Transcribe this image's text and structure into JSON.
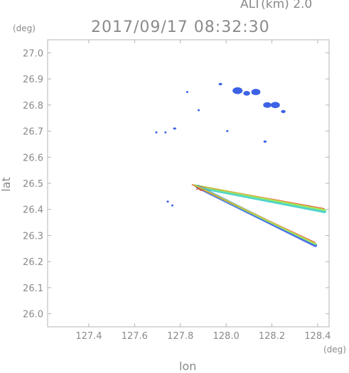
{
  "header": {
    "alt_label": "ALT(km)  2.0",
    "timestamp": "2017/09/17 08:32:30"
  },
  "chart_data": {
    "type": "scatter",
    "title": "2017/09/17 08:32:30",
    "subtitle": "ALT(km)  2.0",
    "xlabel": "lon",
    "ylabel": "lat",
    "x_unit": "(deg)",
    "y_unit": "(deg)",
    "xlim": [
      127.22,
      128.45
    ],
    "ylim": [
      25.95,
      27.05
    ],
    "xticks": [
      "127.4",
      "127.6",
      "127.8",
      "128.0",
      "128.2",
      "128.4"
    ],
    "yticks": [
      "26.0",
      "26.1",
      "26.2",
      "26.3",
      "26.4",
      "26.5",
      "26.6",
      "26.7",
      "26.8",
      "26.9",
      "27.0"
    ],
    "grid": false,
    "colors": {
      "echo_blue": "#3d62e6",
      "echo_cyan": "#3fd0c8",
      "echo_green": "#8ee86a",
      "echo_yellow": "#e8d040",
      "echo_red": "#e04020",
      "frame": "#b4b4b4"
    },
    "echo_clusters": [
      {
        "lon": 127.975,
        "lat": 26.88,
        "size": 0.008
      },
      {
        "lon": 128.05,
        "lat": 26.855,
        "size": 0.022
      },
      {
        "lon": 128.09,
        "lat": 26.845,
        "size": 0.015
      },
      {
        "lon": 128.13,
        "lat": 26.85,
        "size": 0.02
      },
      {
        "lon": 128.18,
        "lat": 26.8,
        "size": 0.018
      },
      {
        "lon": 128.215,
        "lat": 26.8,
        "size": 0.02
      },
      {
        "lon": 128.25,
        "lat": 26.775,
        "size": 0.01
      },
      {
        "lon": 127.83,
        "lat": 26.85,
        "size": 0.004
      },
      {
        "lon": 127.88,
        "lat": 26.78,
        "size": 0.003
      },
      {
        "lon": 127.775,
        "lat": 26.71,
        "size": 0.007
      },
      {
        "lon": 127.695,
        "lat": 26.695,
        "size": 0.003
      },
      {
        "lon": 127.735,
        "lat": 26.695,
        "size": 0.003
      },
      {
        "lon": 128.005,
        "lat": 26.7,
        "size": 0.004
      },
      {
        "lon": 128.17,
        "lat": 26.66,
        "size": 0.007
      },
      {
        "lon": 127.745,
        "lat": 26.43,
        "size": 0.005
      },
      {
        "lon": 127.765,
        "lat": 26.415,
        "size": 0.003
      }
    ],
    "echo_spokes": [
      {
        "from": [
          127.85,
          26.495
        ],
        "to": [
          128.43,
          26.395
        ],
        "colors": [
          "#e04020",
          "#8ee86a",
          "#3fd0c8"
        ]
      },
      {
        "from": [
          127.85,
          26.495
        ],
        "to": [
          128.39,
          26.265
        ],
        "colors": [
          "#e04020",
          "#8ee86a",
          "#3d62e6"
        ]
      }
    ]
  }
}
